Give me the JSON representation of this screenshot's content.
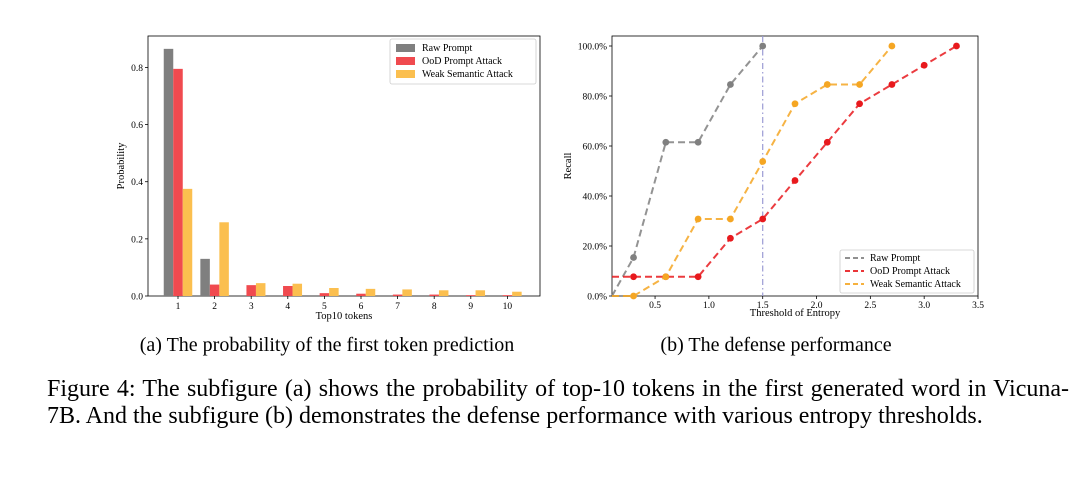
{
  "chart_data": [
    {
      "type": "bar",
      "categories": [
        "1",
        "2",
        "3",
        "4",
        "5",
        "6",
        "7",
        "8",
        "9",
        "10"
      ],
      "series": [
        {
          "name": "Raw Prompt",
          "color": "#7f7f7f",
          "values": [
            0.865,
            0.13,
            0.0,
            0.0,
            0.0,
            0.0,
            0.0,
            0.0,
            0.0,
            0.0
          ]
        },
        {
          "name": "OoD Prompt Attack",
          "color": "#f04a4f",
          "values": [
            0.795,
            0.04,
            0.038,
            0.035,
            0.01,
            0.008,
            0.005,
            0.005,
            0.003,
            0.003
          ]
        },
        {
          "name": "Weak Semantic Attack",
          "color": "#fbbf4f",
          "values": [
            0.375,
            0.258,
            0.045,
            0.043,
            0.028,
            0.025,
            0.023,
            0.02,
            0.02,
            0.015
          ]
        }
      ],
      "xlabel": "Top10 tokens",
      "ylabel": "Probability",
      "ylim": [
        0,
        0.91
      ],
      "yticks": [
        "0.0",
        "0.2",
        "0.4",
        "0.6",
        "0.8"
      ],
      "legend": "top-right",
      "subcaption": "(a) The probability of the first token prediction"
    },
    {
      "type": "line",
      "series": [
        {
          "name": "Raw Prompt",
          "color": "#808080",
          "x": [
            0.3,
            0.6,
            0.9,
            1.2,
            1.5
          ],
          "y": [
            15.4,
            61.5,
            61.5,
            84.6,
            100.0
          ]
        },
        {
          "name": "OoD Prompt Attack",
          "color": "#e8191d",
          "x": [
            0.3,
            0.6,
            0.9,
            1.2,
            1.5,
            1.8,
            2.1,
            2.4,
            2.7,
            3.0,
            3.3
          ],
          "y": [
            7.7,
            7.7,
            7.7,
            23.1,
            30.8,
            46.2,
            61.5,
            76.9,
            84.6,
            92.3,
            100.0
          ]
        },
        {
          "name": "Weak Semantic Attack",
          "color": "#f5a623",
          "x": [
            0.3,
            0.6,
            0.9,
            1.2,
            1.5,
            1.8,
            2.1,
            2.4,
            2.7
          ],
          "y": [
            0.0,
            7.7,
            30.8,
            30.8,
            53.8,
            76.9,
            84.6,
            84.6,
            100.0
          ]
        }
      ],
      "vline_x": 1.5,
      "xlabel": "Threshold of Entropy",
      "ylabel": "Recall",
      "xlim": [
        0.1,
        3.5
      ],
      "ylim": [
        0,
        104
      ],
      "xticks": [
        "0.5",
        "1.0",
        "1.5",
        "2.0",
        "2.5",
        "3.0",
        "3.5"
      ],
      "yticks": [
        "0.0%",
        "20.0%",
        "40.0%",
        "60.0%",
        "80.0%",
        "100.0%"
      ],
      "legend": "bottom-right",
      "subcaption": "(b) The defense performance"
    }
  ],
  "caption": "Figure 4: The subfigure (a) shows the probability of top-10 tokens in the first generated word in Vicuna-7B. And the subfigure (b) demonstrates the defense performance with various entropy thresholds."
}
